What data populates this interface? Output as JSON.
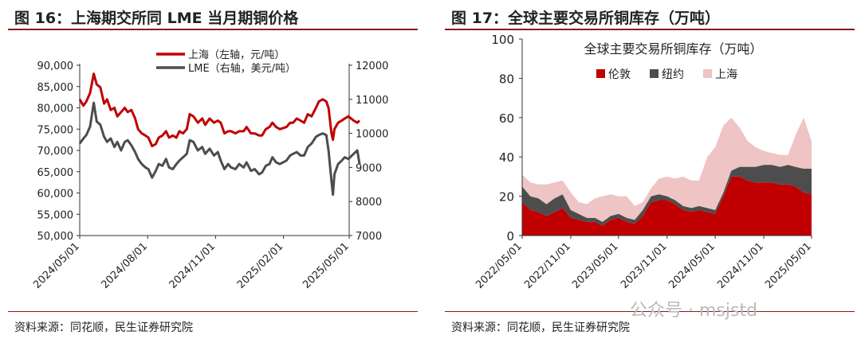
{
  "charts": {
    "left": {
      "figure_title": "图 16：上海期交所同 LME 当月期铜价格",
      "source": "资料来源：同花顺，民生证券研究院"
    },
    "right": {
      "figure_title": "图 17：全球主要交易所铜库存（万吨）",
      "source": "资料来源：同花顺，民生证券研究院"
    }
  },
  "watermark": "公众号 · msjstd",
  "colors": {
    "red": "#c00000",
    "gray": "#4d4d4d",
    "pink": "#efc4c4",
    "rule": "#8b1a1a"
  },
  "chart_data": [
    {
      "type": "line",
      "title": "",
      "x_ticks": [
        "2024/05/01",
        "2024/08/01",
        "2024/11/01",
        "2025/02/01",
        "2025/05/01"
      ],
      "y_left": {
        "ticks": [
          "50,000",
          "55,000",
          "60,000",
          "65,000",
          "70,000",
          "75,000",
          "80,000",
          "85,000",
          "90,000"
        ],
        "ylim": [
          50000,
          90000
        ]
      },
      "y_right": {
        "ticks": [
          "7000",
          "8000",
          "9000",
          "10000",
          "11000",
          "12000"
        ],
        "ylim": [
          7000,
          12000
        ]
      },
      "legend_position": "top-center",
      "series": [
        {
          "name": "上海（左轴，元/吨）",
          "axis": "left",
          "color": "#c00000",
          "points": [
            [
              "2024-05-01",
              82000
            ],
            [
              "2024-05-06",
              80500
            ],
            [
              "2024-05-10",
              81500
            ],
            [
              "2024-05-15",
              83500
            ],
            [
              "2024-05-20",
              88000
            ],
            [
              "2024-05-24",
              85500
            ],
            [
              "2024-05-29",
              84800
            ],
            [
              "2024-06-03",
              81000
            ],
            [
              "2024-06-07",
              82000
            ],
            [
              "2024-06-12",
              79500
            ],
            [
              "2024-06-17",
              80000
            ],
            [
              "2024-06-21",
              78000
            ],
            [
              "2024-06-26",
              79000
            ],
            [
              "2024-07-01",
              80000
            ],
            [
              "2024-07-05",
              79000
            ],
            [
              "2024-07-10",
              79500
            ],
            [
              "2024-07-15",
              77500
            ],
            [
              "2024-07-19",
              75000
            ],
            [
              "2024-07-24",
              74000
            ],
            [
              "2024-07-29",
              73500
            ],
            [
              "2024-08-02",
              73000
            ],
            [
              "2024-08-07",
              71000
            ],
            [
              "2024-08-12",
              71500
            ],
            [
              "2024-08-16",
              73000
            ],
            [
              "2024-08-21",
              73500
            ],
            [
              "2024-08-26",
              74500
            ],
            [
              "2024-08-30",
              73000
            ],
            [
              "2024-09-04",
              73500
            ],
            [
              "2024-09-09",
              73000
            ],
            [
              "2024-09-13",
              74500
            ],
            [
              "2024-09-18",
              74000
            ],
            [
              "2024-09-23",
              75000
            ],
            [
              "2024-09-27",
              78500
            ],
            [
              "2024-10-02",
              78000
            ],
            [
              "2024-10-08",
              76500
            ],
            [
              "2024-10-14",
              77500
            ],
            [
              "2024-10-18",
              76000
            ],
            [
              "2024-10-24",
              77500
            ],
            [
              "2024-10-30",
              76500
            ],
            [
              "2024-11-04",
              77000
            ],
            [
              "2024-11-08",
              76500
            ],
            [
              "2024-11-13",
              74000
            ],
            [
              "2024-11-18",
              74500
            ],
            [
              "2024-11-22",
              74500
            ],
            [
              "2024-11-28",
              74000
            ],
            [
              "2024-12-03",
              74500
            ],
            [
              "2024-12-09",
              74500
            ],
            [
              "2024-12-13",
              75500
            ],
            [
              "2024-12-19",
              74000
            ],
            [
              "2024-12-24",
              74000
            ],
            [
              "2024-12-30",
              73500
            ],
            [
              "2025-01-03",
              73500
            ],
            [
              "2025-01-08",
              75000
            ],
            [
              "2025-01-13",
              75500
            ],
            [
              "2025-01-17",
              76500
            ],
            [
              "2025-01-22",
              75500
            ],
            [
              "2025-01-27",
              75000
            ],
            [
              "2025-02-05",
              75500
            ],
            [
              "2025-02-10",
              76500
            ],
            [
              "2025-02-14",
              76500
            ],
            [
              "2025-02-19",
              77500
            ],
            [
              "2025-02-24",
              77000
            ],
            [
              "2025-03-01",
              76500
            ],
            [
              "2025-03-06",
              78500
            ],
            [
              "2025-03-11",
              78000
            ],
            [
              "2025-03-17",
              80000
            ],
            [
              "2025-03-21",
              81500
            ],
            [
              "2025-03-26",
              82000
            ],
            [
              "2025-03-31",
              81500
            ],
            [
              "2025-04-03",
              80000
            ],
            [
              "2025-04-07",
              74000
            ],
            [
              "2025-04-09",
              72500
            ],
            [
              "2025-04-11",
              75000
            ],
            [
              "2025-04-16",
              76500
            ],
            [
              "2025-04-21",
              77000
            ],
            [
              "2025-04-25",
              77500
            ],
            [
              "2025-04-30",
              78000
            ],
            [
              "2025-05-07",
              77000
            ],
            [
              "2025-05-12",
              76500
            ],
            [
              "2025-05-15",
              77000
            ]
          ]
        },
        {
          "name": "LME（右轴，美元/吨）",
          "axis": "right",
          "color": "#4d4d4d",
          "points": [
            [
              "2024-05-01",
              9700
            ],
            [
              "2024-05-06",
              9850
            ],
            [
              "2024-05-10",
              9950
            ],
            [
              "2024-05-15",
              10200
            ],
            [
              "2024-05-20",
              10900
            ],
            [
              "2024-05-24",
              10350
            ],
            [
              "2024-05-29",
              10250
            ],
            [
              "2024-06-03",
              9900
            ],
            [
              "2024-06-07",
              9750
            ],
            [
              "2024-06-12",
              9850
            ],
            [
              "2024-06-17",
              9600
            ],
            [
              "2024-06-21",
              9750
            ],
            [
              "2024-06-26",
              9500
            ],
            [
              "2024-07-01",
              9750
            ],
            [
              "2024-07-05",
              9800
            ],
            [
              "2024-07-10",
              9650
            ],
            [
              "2024-07-15",
              9450
            ],
            [
              "2024-07-19",
              9250
            ],
            [
              "2024-07-24",
              9100
            ],
            [
              "2024-07-29",
              9000
            ],
            [
              "2024-08-02",
              8950
            ],
            [
              "2024-08-07",
              8700
            ],
            [
              "2024-08-12",
              8900
            ],
            [
              "2024-08-16",
              9100
            ],
            [
              "2024-08-21",
              9050
            ],
            [
              "2024-08-26",
              9250
            ],
            [
              "2024-08-30",
              9000
            ],
            [
              "2024-09-04",
              8950
            ],
            [
              "2024-09-09",
              9100
            ],
            [
              "2024-09-13",
              9200
            ],
            [
              "2024-09-18",
              9300
            ],
            [
              "2024-09-23",
              9400
            ],
            [
              "2024-09-27",
              9800
            ],
            [
              "2024-10-02",
              9750
            ],
            [
              "2024-10-08",
              9500
            ],
            [
              "2024-10-14",
              9600
            ],
            [
              "2024-10-18",
              9400
            ],
            [
              "2024-10-24",
              9550
            ],
            [
              "2024-10-30",
              9350
            ],
            [
              "2024-11-04",
              9450
            ],
            [
              "2024-11-08",
              9200
            ],
            [
              "2024-11-13",
              8950
            ],
            [
              "2024-11-18",
              9100
            ],
            [
              "2024-11-22",
              9000
            ],
            [
              "2024-11-28",
              8950
            ],
            [
              "2024-12-03",
              9100
            ],
            [
              "2024-12-09",
              9000
            ],
            [
              "2024-12-13",
              9150
            ],
            [
              "2024-12-19",
              8900
            ],
            [
              "2024-12-24",
              8950
            ],
            [
              "2024-12-30",
              8800
            ],
            [
              "2025-01-03",
              8850
            ],
            [
              "2025-01-08",
              9050
            ],
            [
              "2025-01-13",
              9100
            ],
            [
              "2025-01-17",
              9300
            ],
            [
              "2025-01-22",
              9150
            ],
            [
              "2025-01-27",
              9100
            ],
            [
              "2025-02-05",
              9200
            ],
            [
              "2025-02-10",
              9350
            ],
            [
              "2025-02-14",
              9400
            ],
            [
              "2025-02-19",
              9450
            ],
            [
              "2025-02-24",
              9350
            ],
            [
              "2025-03-01",
              9350
            ],
            [
              "2025-03-06",
              9600
            ],
            [
              "2025-03-11",
              9700
            ],
            [
              "2025-03-17",
              9900
            ],
            [
              "2025-03-21",
              9950
            ],
            [
              "2025-03-26",
              10000
            ],
            [
              "2025-03-31",
              9950
            ],
            [
              "2025-04-03",
              9500
            ],
            [
              "2025-04-07",
              8600
            ],
            [
              "2025-04-09",
              8200
            ],
            [
              "2025-04-11",
              8800
            ],
            [
              "2025-04-16",
              9100
            ],
            [
              "2025-04-21",
              9200
            ],
            [
              "2025-04-25",
              9300
            ],
            [
              "2025-04-30",
              9250
            ],
            [
              "2025-05-07",
              9400
            ],
            [
              "2025-05-12",
              9500
            ],
            [
              "2025-05-15",
              9100
            ]
          ]
        }
      ]
    },
    {
      "type": "area",
      "stacked": true,
      "title": "全球主要交易所铜库存（万吨）",
      "x_ticks": [
        "2022/05/01",
        "2022/11/01",
        "2023/05/01",
        "2023/11/01",
        "2024/05/01",
        "2024/11/01",
        "2025/05/01"
      ],
      "y_ticks": [
        "0",
        "20",
        "40",
        "60",
        "80",
        "100"
      ],
      "ylim": [
        0,
        100
      ],
      "legend_position": "top-center",
      "x": [
        "2022-05-01",
        "2022-06-01",
        "2022-07-01",
        "2022-08-01",
        "2022-09-01",
        "2022-10-01",
        "2022-11-01",
        "2022-12-01",
        "2023-01-01",
        "2023-02-01",
        "2023-03-01",
        "2023-04-01",
        "2023-05-01",
        "2023-06-01",
        "2023-07-01",
        "2023-08-01",
        "2023-09-01",
        "2023-10-01",
        "2023-11-01",
        "2023-12-01",
        "2024-01-01",
        "2024-02-01",
        "2024-03-01",
        "2024-04-01",
        "2024-05-01",
        "2024-06-01",
        "2024-07-01",
        "2024-08-01",
        "2024-09-01",
        "2024-10-01",
        "2024-11-01",
        "2024-12-01",
        "2025-01-01",
        "2025-02-01",
        "2025-03-01",
        "2025-04-01",
        "2025-05-01"
      ],
      "series": [
        {
          "name": "伦敦",
          "color": "#c00000",
          "values": [
            17,
            13,
            12,
            10,
            12,
            14,
            9,
            8,
            7,
            7,
            5,
            8,
            9,
            7,
            6,
            10,
            17,
            18,
            18,
            16,
            13,
            12,
            13,
            12,
            11,
            20,
            30,
            30,
            28,
            27,
            27,
            27,
            26,
            26,
            25,
            22,
            21
          ]
        },
        {
          "name": "纽约",
          "color": "#4d4d4d",
          "values": [
            8,
            7,
            7,
            6,
            7,
            7,
            4,
            3,
            2,
            2,
            2,
            2,
            2,
            2,
            2,
            3,
            3,
            3,
            2,
            2,
            2,
            2,
            2,
            2,
            2,
            2,
            3,
            5,
            7,
            8,
            9,
            9,
            9,
            10,
            10,
            12,
            13
          ]
        },
        {
          "name": "上海",
          "color": "#efc4c4",
          "values": [
            6,
            7,
            7,
            10,
            8,
            7,
            9,
            6,
            7,
            10,
            13,
            11,
            9,
            11,
            7,
            4,
            4,
            8,
            10,
            11,
            15,
            14,
            13,
            26,
            32,
            34,
            27,
            20,
            13,
            10,
            7,
            6,
            6,
            5,
            16,
            26,
            14
          ]
        }
      ]
    }
  ]
}
